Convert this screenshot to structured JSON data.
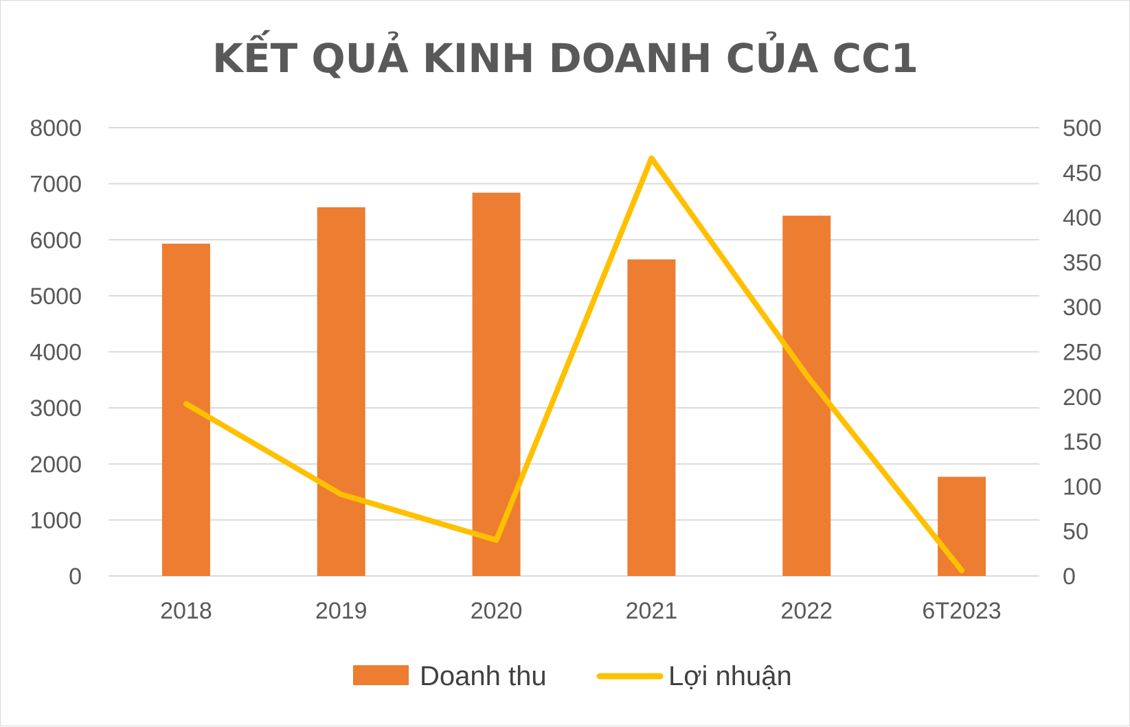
{
  "chart_data": {
    "type": "bar+line",
    "title": "KẾT QUẢ KINH DOANH CỦA CC1",
    "categories": [
      "2018",
      "2019",
      "2020",
      "2021",
      "2022",
      "6T2023"
    ],
    "series": [
      {
        "name": "Doanh thu",
        "type": "bar",
        "axis": "left",
        "color": "#ED7D31",
        "values": [
          5930,
          6580,
          6840,
          5650,
          6430,
          1770
        ]
      },
      {
        "name": "Lợi nhuận",
        "type": "line",
        "axis": "right",
        "color": "#FFC000",
        "values": [
          192,
          91,
          40,
          466,
          224,
          6
        ]
      }
    ],
    "y_left": {
      "min": 0,
      "max": 8000,
      "step": 1000,
      "ticks": [
        "0",
        "1000",
        "2000",
        "3000",
        "4000",
        "5000",
        "6000",
        "7000",
        "8000"
      ]
    },
    "y_right": {
      "min": 0,
      "max": 500,
      "step": 50,
      "ticks": [
        "0",
        "50",
        "100",
        "150",
        "200",
        "250",
        "300",
        "350",
        "400",
        "450",
        "500"
      ]
    },
    "grid": true,
    "legend_position": "bottom"
  }
}
